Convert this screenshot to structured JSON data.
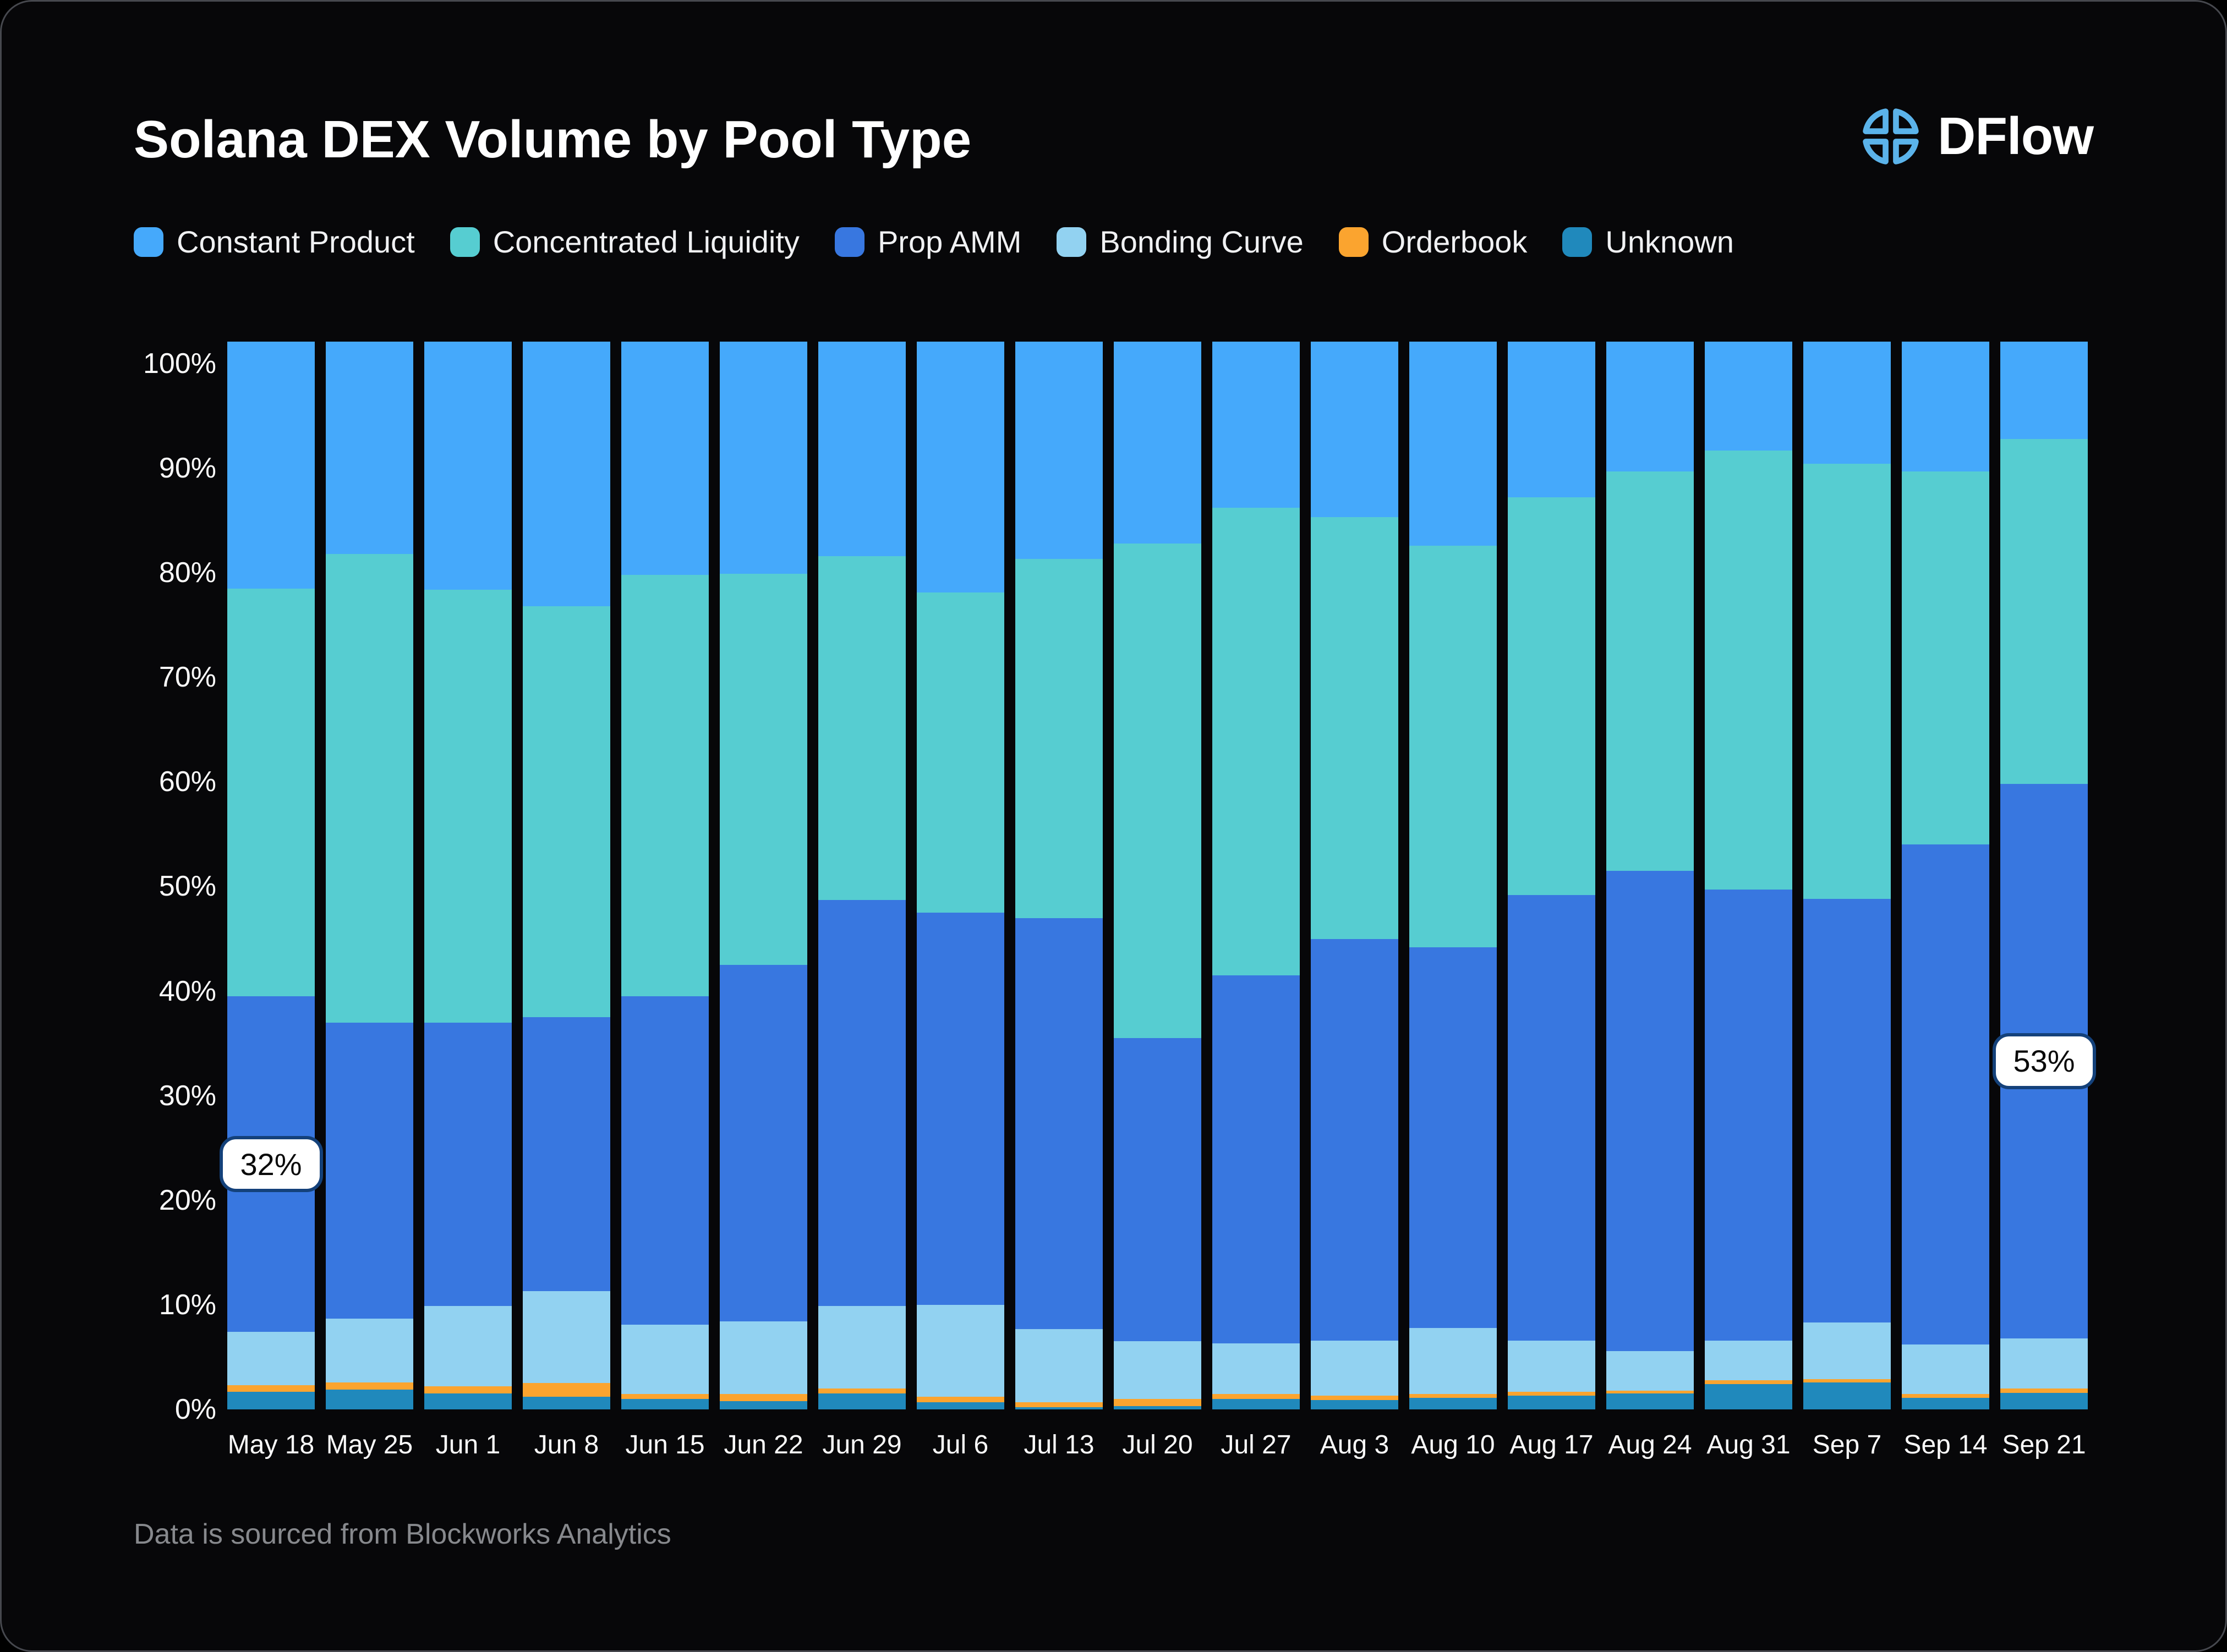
{
  "header": {
    "title": "Solana DEX Volume by Pool Type",
    "brand": "DFlow"
  },
  "footer": {
    "source_note": "Data is sourced from Blockworks Analytics"
  },
  "colors": {
    "background": "#070709",
    "card_border": "#46484e",
    "text_primary": "#ffffff",
    "text_muted": "#87898d",
    "callout_bg": "#ffffff",
    "callout_border": "#14417a",
    "logo_icon": "#5bb3ea"
  },
  "chart_data": {
    "type": "bar",
    "stacked": true,
    "unit": "%",
    "title": "Solana DEX Volume by Pool Type",
    "legend_position": "top",
    "grid": false,
    "ylim": [
      0,
      100
    ],
    "y_ticks": [
      "0%",
      "10%",
      "20%",
      "30%",
      "40%",
      "50%",
      "60%",
      "70%",
      "80%",
      "90%",
      "100%"
    ],
    "categories": [
      "May 18",
      "May 25",
      "Jun 1",
      "Jun 8",
      "Jun 15",
      "Jun 22",
      "Jun 29",
      "Jul 6",
      "Jul 13",
      "Jul 20",
      "Jul 27",
      "Aug 3",
      "Aug 10",
      "Aug 17",
      "Aug 24",
      "Aug 31",
      "Sep 7",
      "Sep 14",
      "Sep 21"
    ],
    "series": [
      {
        "name": "Constant Product",
        "color": "#45a9fb",
        "values": [
          21.5,
          18.2,
          21.6,
          23.2,
          20.2,
          20.1,
          18.4,
          21.9,
          18.7,
          17.2,
          13.8,
          14.7,
          17.4,
          12.8,
          10.3,
          8.3,
          9.6,
          10.3,
          7.2
        ]
      },
      {
        "name": "Concentrated Liquidity",
        "color": "#56cdd1",
        "values": [
          39.0,
          44.8,
          41.4,
          39.3,
          40.3,
          37.4,
          32.9,
          30.6,
          34.3,
          47.3,
          44.7,
          40.3,
          38.4,
          38.0,
          38.2,
          42.0,
          41.6,
          35.7,
          33.0
        ]
      },
      {
        "name": "Prop AMM",
        "color": "#3877e0",
        "values": [
          32.1,
          28.3,
          27.1,
          26.2,
          31.4,
          34.1,
          38.8,
          37.5,
          39.3,
          29.0,
          35.2,
          38.4,
          36.4,
          42.6,
          45.9,
          43.1,
          40.5,
          47.8,
          53.0
        ]
      },
      {
        "name": "Bonding Curve",
        "color": "#92d2f1",
        "values": [
          5.1,
          6.1,
          7.7,
          8.8,
          6.6,
          6.9,
          7.9,
          8.8,
          7.0,
          5.5,
          4.8,
          5.3,
          6.3,
          4.9,
          3.8,
          3.8,
          5.4,
          4.7,
          4.8
        ]
      },
      {
        "name": "Orderbook",
        "color": "#fba42f",
        "values": [
          0.6,
          0.7,
          0.7,
          1.3,
          0.5,
          0.7,
          0.5,
          0.5,
          0.5,
          0.7,
          0.5,
          0.4,
          0.4,
          0.4,
          0.3,
          0.4,
          0.3,
          0.4,
          0.4
        ]
      },
      {
        "name": "Unknown",
        "color": "#2089bc",
        "values": [
          1.7,
          1.9,
          1.5,
          1.2,
          1.0,
          0.8,
          1.5,
          0.7,
          0.2,
          0.3,
          1.0,
          0.9,
          1.1,
          1.3,
          1.5,
          2.4,
          2.6,
          1.1,
          1.6
        ]
      }
    ],
    "annotations": [
      {
        "category": "May 18",
        "series": "Prop AMM",
        "label": "32%"
      },
      {
        "category": "Sep 21",
        "series": "Prop AMM",
        "label": "53%"
      }
    ]
  }
}
